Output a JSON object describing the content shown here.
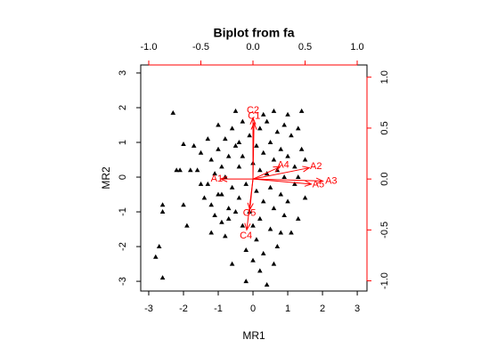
{
  "chart_data": {
    "type": "biplot",
    "title": "Biplot from fa",
    "xlabel": "MR1",
    "ylabel": "MR2",
    "xlim": [
      -3.23,
      3.28
    ],
    "ylim": [
      -3.28,
      3.23
    ],
    "xticks": [
      -3,
      -2,
      -1,
      0,
      1,
      2,
      3
    ],
    "yticks": [
      -3,
      -2,
      -1,
      0,
      1,
      2,
      3
    ],
    "x2lim": [
      -1.077,
      1.094
    ],
    "y2lim": [
      -1.1,
      1.12
    ],
    "x2ticks": [
      {
        "value": -1,
        "label": "-1.0"
      },
      -0.5,
      {
        "value": 0,
        "label": "0.0"
      },
      0.5,
      {
        "value": 1,
        "label": "1.0"
      }
    ],
    "y2ticks": [
      {
        "value": -1,
        "label": "-1.0"
      },
      -0.5,
      {
        "value": 0,
        "label": "0.0"
      },
      0.5,
      {
        "value": 1,
        "label": "1.0"
      }
    ],
    "point_color": "#000000",
    "loading_color": "#ff0000",
    "points": {
      "x": [
        -2.8,
        -2.6,
        -2.7,
        -2.6,
        -2.6,
        -2.3,
        -2.2,
        -2.1,
        -2.0,
        -1.9,
        -2.0,
        -1.7,
        -1.6,
        -1.5,
        -1.4,
        -1.3,
        -1.3,
        -1.2,
        -1.2,
        -1.1,
        -1.1,
        -1.0,
        -1.0,
        -1.0,
        -0.9,
        -0.9,
        -0.8,
        -0.8,
        -0.8,
        -0.7,
        -0.7,
        -0.6,
        -0.6,
        -0.5,
        -0.5,
        -0.5,
        -0.4,
        -0.4,
        -0.3,
        -0.3,
        -0.3,
        -0.2,
        -0.2,
        -0.1,
        -0.1,
        0.0,
        0.0,
        0.1,
        0.1,
        0.1,
        0.2,
        0.2,
        0.2,
        0.3,
        0.3,
        0.3,
        0.4,
        0.4,
        0.4,
        0.5,
        0.5,
        0.5,
        0.6,
        0.6,
        0.6,
        0.7,
        0.7,
        0.7,
        0.8,
        0.8,
        0.9,
        0.9,
        0.9,
        1.0,
        1.0,
        1.1,
        1.1,
        1.2,
        1.2,
        1.3,
        1.3,
        1.4,
        1.4,
        1.5,
        1.5,
        -0.6,
        -1.5,
        -0.2,
        1.0,
        0.3,
        -1.8,
        -0.9,
        0.6,
        0.0,
        -0.4,
        0.8,
        1.3,
        -1.2,
        0.2,
        -0.7
      ],
      "y": [
        -2.3,
        -2.9,
        -2.0,
        -0.8,
        -1.0,
        1.85,
        0.2,
        0.2,
        -0.8,
        -1.4,
        0.95,
        0.9,
        0.2,
        0.7,
        -0.6,
        1.1,
        -0.2,
        0.5,
        -0.8,
        -1.1,
        0.1,
        1.5,
        -0.5,
        0.8,
        -0.5,
        0.3,
        -1.7,
        1.1,
        0.0,
        -1.2,
        0.6,
        1.4,
        -0.3,
        0.9,
        -1.0,
        1.9,
        0.3,
        -0.6,
        -1.4,
        1.6,
        0.6,
        -2.1,
        -0.2,
        1.2,
        -1.0,
        -2.4,
        0.4,
        -1.8,
        0.9,
        -0.4,
        1.4,
        -1.2,
        0.2,
        -2.2,
        0.7,
        -0.7,
        1.6,
        -3.1,
        0.1,
        -1.5,
        1.0,
        -0.3,
        1.9,
        -0.9,
        0.5,
        -2.0,
        0.2,
        1.3,
        -0.5,
        0.8,
        -1.1,
        1.5,
        0.0,
        0.6,
        -0.7,
        1.2,
        -1.6,
        0.3,
        -0.2,
        1.4,
        -1.2,
        1.9,
        0.8,
        -0.6,
        0.5,
        -2.5,
        -0.2,
        -3.0,
        1.8,
        1.8,
        0.2,
        -1.3,
        -2.5,
        -1.4,
        1.0,
        -1.6,
        0.0,
        -1.6,
        -2.7,
        -0.9
      ]
    },
    "loadings": [
      {
        "name": "C2",
        "x": 0.0,
        "y": 0.6
      },
      {
        "name": "C1",
        "x": 0.01,
        "y": 0.55
      },
      {
        "name": "A4",
        "x": 0.26,
        "y": 0.12
      },
      {
        "name": "A2",
        "x": 0.54,
        "y": 0.11
      },
      {
        "name": "A3",
        "x": 0.67,
        "y": -0.02
      },
      {
        "name": "A5",
        "x": 0.56,
        "y": -0.05
      },
      {
        "name": "A1",
        "x": -0.31,
        "y": 0.0
      },
      {
        "name": "O5",
        "x": -0.03,
        "y": -0.3
      },
      {
        "name": "C4",
        "x": -0.06,
        "y": -0.5
      }
    ]
  }
}
